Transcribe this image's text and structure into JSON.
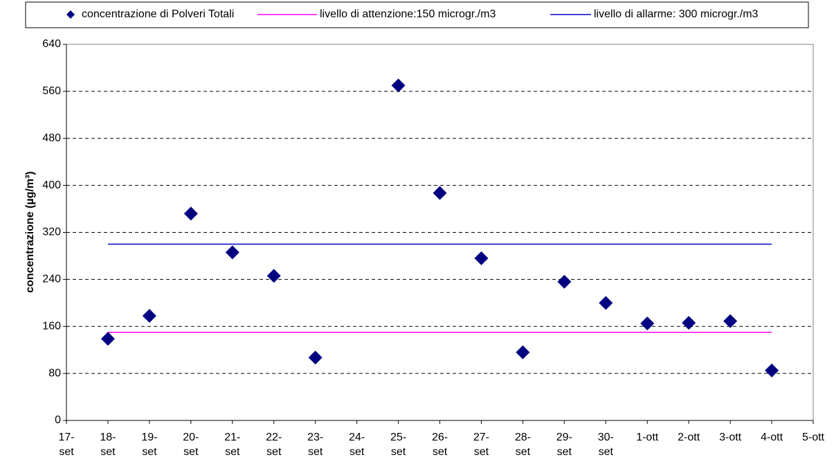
{
  "chart_data": {
    "type": "scatter",
    "y_label": "concentrazione (µg/m³)",
    "categories": [
      "17-set",
      "18-set",
      "19-set",
      "20-set",
      "21-set",
      "22-set",
      "23-set",
      "24-set",
      "25-set",
      "26-set",
      "27-set",
      "28-set",
      "29-set",
      "30-set",
      "1-ott",
      "2-ott",
      "3-ott",
      "4-ott",
      "5-ott"
    ],
    "series": [
      {
        "name": "concentrazione di Polveri Totali",
        "type": "scatter",
        "color": "#000080",
        "values": [
          null,
          139,
          178,
          352,
          286,
          246,
          107,
          null,
          570,
          387,
          276,
          116,
          236,
          200,
          165,
          166,
          169,
          85,
          null
        ]
      },
      {
        "name": "livello di attenzione:150 microgr./m3",
        "type": "line",
        "color": "#ff00ff",
        "values": [
          null,
          150,
          150,
          150,
          150,
          150,
          150,
          150,
          150,
          150,
          150,
          150,
          150,
          150,
          150,
          150,
          150,
          150,
          null
        ]
      },
      {
        "name": "livello di allarme: 300 microgr./m3",
        "type": "line",
        "color": "#0000cc",
        "values": [
          null,
          300,
          300,
          300,
          300,
          300,
          300,
          300,
          300,
          300,
          300,
          300,
          300,
          300,
          300,
          300,
          300,
          300,
          null
        ]
      }
    ],
    "ylim": [
      0,
      640
    ],
    "yticks": [
      0,
      80,
      160,
      240,
      320,
      400,
      480,
      560,
      640
    ],
    "grid": true
  }
}
